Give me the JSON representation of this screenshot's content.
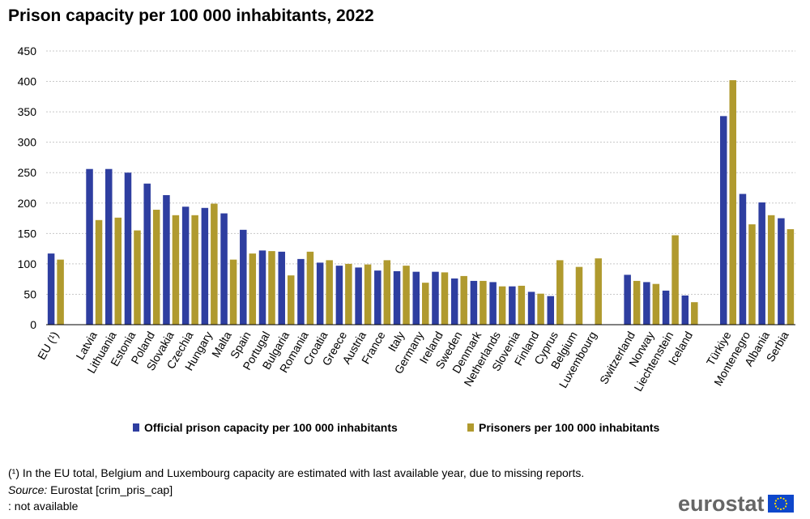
{
  "title": "Prison capacity per 100 000 inhabitants, 2022",
  "legend": {
    "capacity_label": "Official prison capacity per 100 000 inhabitants",
    "prisoners_label": "Prisoners per 100 000 inhabitants"
  },
  "footnote": "(¹) In the EU total, Belgium and Luxembourg  capacity are estimated with last available year, due to missing reports.",
  "source_label": "Source:",
  "source_text": " Eurostat [crim_pris_cap]",
  "not_available": ": not available",
  "logo_text": "eurostat",
  "colors": {
    "capacity": "#2e3ea0",
    "prisoners": "#b09a2e",
    "grid": "#c8c8c8",
    "axis": "#000000",
    "flag": "#0e47cb",
    "flag_stars": "#ffdd00"
  },
  "chart_data": {
    "type": "bar",
    "ylim": [
      0,
      450
    ],
    "yticks": [
      0,
      50,
      100,
      150,
      200,
      250,
      300,
      350,
      400,
      450
    ],
    "grid": true,
    "legend_position": "bottom",
    "groups": [
      [
        "EU (¹)"
      ],
      [
        "Latvia",
        "Lithuania",
        "Estonia",
        "Poland",
        "Slovakia",
        "Czechia",
        "Hungary",
        "Malta",
        "Spain",
        "Portugal",
        "Bulgaria",
        "Romania",
        "Croatia",
        "Greece",
        "Austria",
        "France",
        "Italy",
        "Germany",
        "Ireland",
        "Sweden",
        "Denmark",
        "Netherlands",
        "Slovenia",
        "Finland",
        "Cyprus",
        "Belgium",
        "Luxembourg"
      ],
      [
        "Switzerland",
        "Norway",
        "Liechtenstein",
        "Iceland"
      ],
      [
        "Türkiye",
        "Montenegro",
        "Albania",
        "Serbia"
      ]
    ],
    "categories": [
      "EU (¹)",
      "Latvia",
      "Lithuania",
      "Estonia",
      "Poland",
      "Slovakia",
      "Czechia",
      "Hungary",
      "Malta",
      "Spain",
      "Portugal",
      "Bulgaria",
      "Romania",
      "Croatia",
      "Greece",
      "Austria",
      "France",
      "Italy",
      "Germany",
      "Ireland",
      "Sweden",
      "Denmark",
      "Netherlands",
      "Slovenia",
      "Finland",
      "Cyprus",
      "Belgium",
      "Luxembourg",
      "Switzerland",
      "Norway",
      "Liechtenstein",
      "Iceland",
      "Türkiye",
      "Montenegro",
      "Albania",
      "Serbia"
    ],
    "series": [
      {
        "name": "Official prison capacity per 100 000 inhabitants",
        "values": [
          117,
          256,
          256,
          250,
          232,
          213,
          194,
          192,
          183,
          156,
          122,
          120,
          108,
          102,
          97,
          94,
          89,
          88,
          87,
          87,
          76,
          72,
          70,
          63,
          54,
          47,
          null,
          null,
          82,
          70,
          56,
          48,
          343,
          215,
          201,
          175
        ]
      },
      {
        "name": "Prisoners per 100 000 inhabitants",
        "values": [
          107,
          172,
          176,
          155,
          189,
          180,
          180,
          199,
          107,
          117,
          121,
          81,
          120,
          106,
          100,
          99,
          106,
          97,
          69,
          86,
          80,
          72,
          63,
          64,
          51,
          106,
          95,
          109,
          72,
          67,
          147,
          37,
          402,
          165,
          180,
          157
        ]
      }
    ]
  }
}
